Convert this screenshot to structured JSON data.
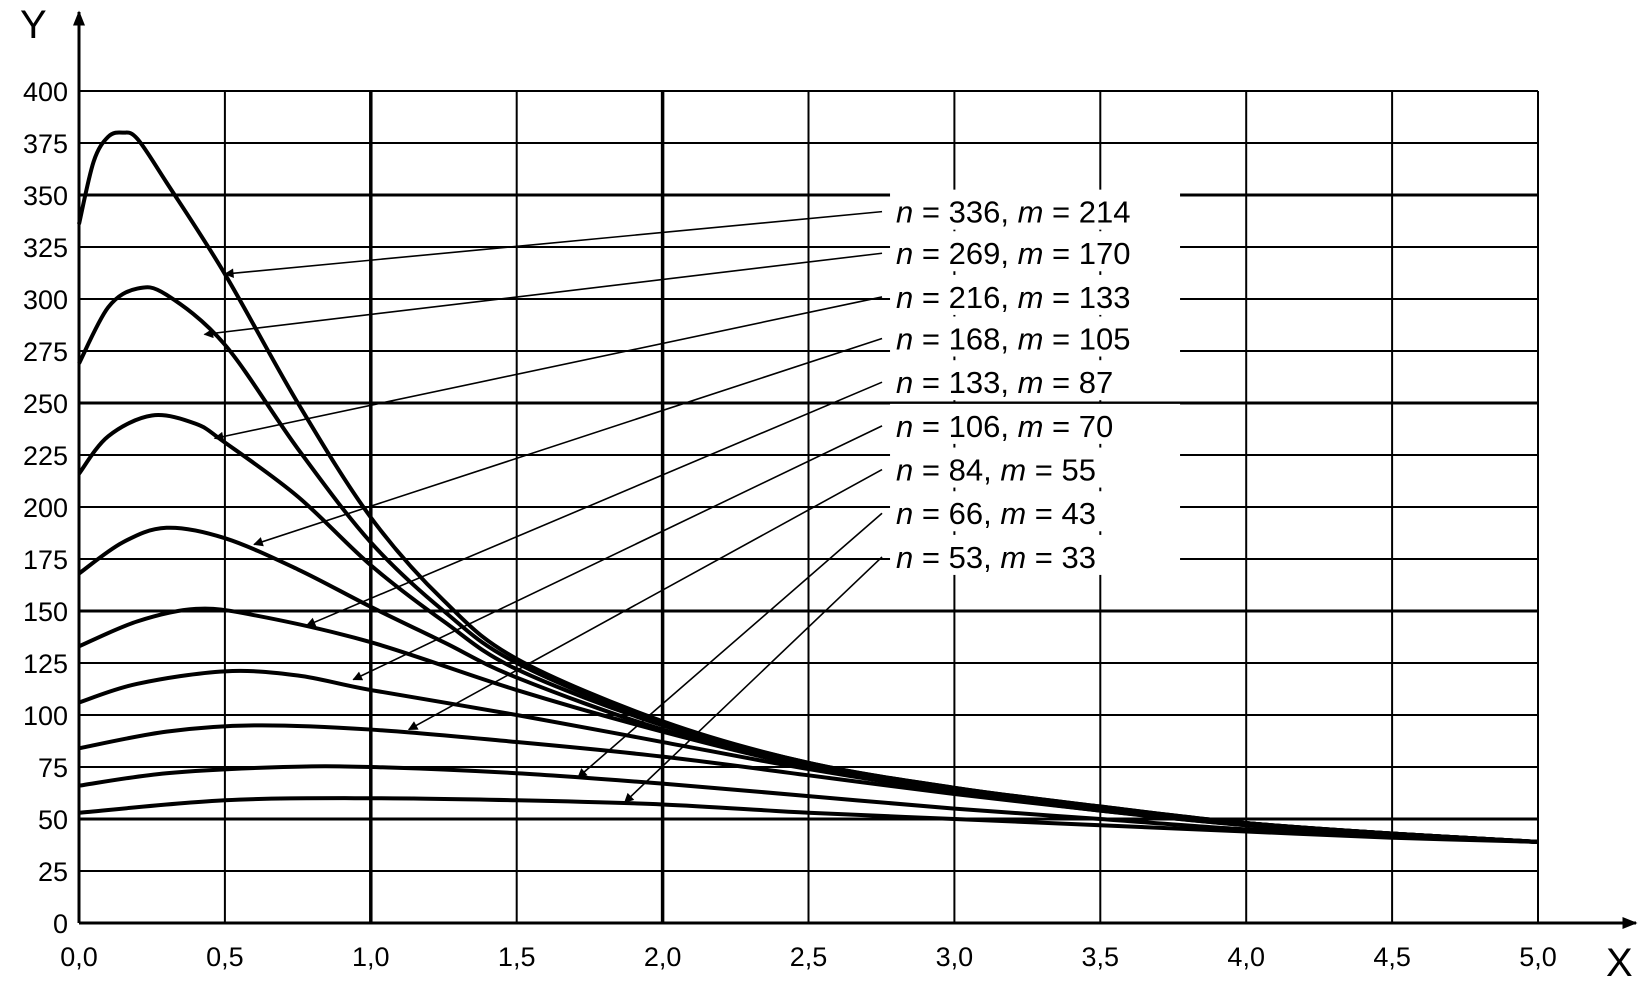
{
  "chart_data": {
    "type": "line",
    "title": "",
    "xlabel": "X",
    "ylabel": "Y",
    "xlim": [
      0,
      5
    ],
    "ylim": [
      0,
      400
    ],
    "grid": true,
    "x_ticks": [
      "0,0",
      "0,5",
      "1,0",
      "1,5",
      "2,0",
      "2,5",
      "3,0",
      "3,5",
      "4,0",
      "4,5",
      "5,0"
    ],
    "x_tick_values": [
      0,
      0.5,
      1,
      1.5,
      2,
      2.5,
      3,
      3.5,
      4,
      4.5,
      5
    ],
    "y_ticks": [
      "0",
      "25",
      "50",
      "75",
      "100",
      "125",
      "150",
      "175",
      "200",
      "225",
      "250",
      "275",
      "300",
      "325",
      "350",
      "375",
      "400"
    ],
    "y_tick_values": [
      0,
      25,
      50,
      75,
      100,
      125,
      150,
      175,
      200,
      225,
      250,
      275,
      300,
      325,
      350,
      375,
      400
    ],
    "series": [
      {
        "name": "n = 336, m = 214",
        "n": "336",
        "m": "214",
        "label_at": [
          2.8,
          342
        ],
        "arrow_to": [
          0.5,
          312
        ],
        "x": [
          0,
          0.05,
          0.1,
          0.15,
          0.2,
          0.3,
          0.5,
          0.75,
          1.0,
          1.25,
          1.5,
          2.0,
          2.5,
          3.0,
          3.5,
          4.0,
          4.5,
          5.0
        ],
        "y": [
          336,
          366,
          378,
          380,
          377,
          356,
          312,
          250,
          195,
          155,
          127,
          97,
          77,
          65,
          56,
          48,
          43,
          39
        ]
      },
      {
        "name": "n = 269, m = 170",
        "n": "269",
        "m": "170",
        "label_at": [
          2.8,
          322
        ],
        "arrow_to": [
          0.43,
          283
        ],
        "x": [
          0,
          0.1,
          0.2,
          0.3,
          0.5,
          0.75,
          1.0,
          1.25,
          1.5,
          2.0,
          2.5,
          3.0,
          3.5,
          4.0,
          4.5,
          5.0
        ],
        "y": [
          269,
          296,
          305,
          302,
          278,
          228,
          183,
          150,
          125,
          96,
          77,
          65,
          56,
          48,
          43,
          39
        ]
      },
      {
        "name": "n = 216, m = 133",
        "n": "216",
        "m": "133",
        "label_at": [
          2.8,
          301
        ],
        "arrow_to": [
          0.465,
          233
        ],
        "x": [
          0,
          0.1,
          0.25,
          0.4,
          0.5,
          0.75,
          1.0,
          1.25,
          1.5,
          2.0,
          2.5,
          3.0,
          3.5,
          4.0,
          4.5,
          5.0
        ],
        "y": [
          216,
          234,
          244,
          240,
          231,
          205,
          172,
          145,
          122,
          95,
          76,
          64,
          55,
          48,
          43,
          39
        ]
      },
      {
        "name": "n = 168, m = 105",
        "n": "168",
        "m": "105",
        "label_at": [
          2.8,
          281
        ],
        "arrow_to": [
          0.6,
          182
        ],
        "x": [
          0,
          0.15,
          0.3,
          0.5,
          0.75,
          1.0,
          1.25,
          1.5,
          2.0,
          2.5,
          3.0,
          3.5,
          4.0,
          4.5,
          5.0
        ],
        "y": [
          168,
          183,
          190,
          185,
          170,
          152,
          135,
          118,
          93,
          76,
          64,
          55,
          48,
          43,
          39
        ]
      },
      {
        "name": "n = 133, m = 87",
        "n": "133",
        "m": "87",
        "label_at": [
          2.8,
          260
        ],
        "arrow_to": [
          0.78,
          143
        ],
        "x": [
          0,
          0.2,
          0.4,
          0.6,
          1.0,
          1.5,
          2.0,
          2.5,
          3.0,
          3.5,
          4.0,
          4.5,
          5.0
        ],
        "y": [
          133,
          145,
          151,
          148,
          135,
          112,
          92,
          75,
          63,
          55,
          48,
          43,
          39
        ]
      },
      {
        "name": "n = 106, m = 70",
        "n": "106",
        "m": "70",
        "label_at": [
          2.8,
          239
        ],
        "arrow_to": [
          0.94,
          117
        ],
        "x": [
          0,
          0.2,
          0.5,
          0.75,
          1.0,
          1.5,
          2.0,
          2.5,
          3.0,
          3.5,
          4.0,
          4.5,
          5.0
        ],
        "y": [
          106,
          115,
          121,
          119,
          112,
          100,
          87,
          74,
          63,
          54,
          47,
          42,
          39
        ]
      },
      {
        "name": "n = 84, m = 55",
        "n": "84",
        "m": "55",
        "label_at": [
          2.8,
          218
        ],
        "arrow_to": [
          1.13,
          93
        ],
        "x": [
          0,
          0.3,
          0.6,
          1.0,
          1.5,
          2.0,
          2.5,
          3.0,
          3.5,
          4.0,
          4.5,
          5.0
        ],
        "y": [
          84,
          92,
          95,
          93,
          87,
          80,
          71,
          62,
          54,
          47,
          42,
          39
        ]
      },
      {
        "name": "n = 66, m = 43",
        "n": "66",
        "m": "43",
        "label_at": [
          2.8,
          197
        ],
        "arrow_to": [
          1.71,
          70
        ],
        "x": [
          0,
          0.3,
          0.7,
          1.0,
          1.5,
          2.0,
          2.5,
          3.0,
          3.5,
          4.0,
          4.5,
          5.0
        ],
        "y": [
          66,
          72,
          75,
          75,
          72,
          67,
          61,
          55,
          50,
          45,
          42,
          39
        ]
      },
      {
        "name": "n = 53, m = 33",
        "n": "53",
        "m": "33",
        "label_at": [
          2.8,
          176
        ],
        "arrow_to": [
          1.87,
          58
        ],
        "x": [
          0,
          0.5,
          1.0,
          1.5,
          2.0,
          2.5,
          3.0,
          3.5,
          4.0,
          4.5,
          5.0
        ],
        "y": [
          53,
          59,
          60,
          59,
          57,
          53,
          50,
          47,
          44,
          41,
          39
        ]
      }
    ],
    "label_parts": {
      "n": "n",
      "m": "m",
      "eq": " = ",
      "sep": ", "
    },
    "legend": "annotations with arrows, center-right"
  }
}
